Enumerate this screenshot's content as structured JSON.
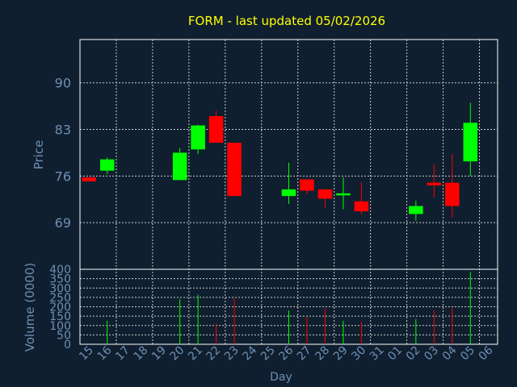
{
  "title": "FORM - last updated 05/02/2026",
  "colors": {
    "background": "#0f1f2f",
    "title": "#ffff00",
    "axis_text": "#6f8fb5",
    "axis_line": "#ffffff",
    "grid": "#cccccc",
    "up": "#00ff00",
    "down": "#ff0000"
  },
  "chart_data": {
    "type": "candlestick",
    "title": "FORM - last updated 05/02/2026",
    "xlabel": "Day",
    "price_panel": {
      "ylabel": "Price",
      "ylim": [
        62,
        96.5
      ],
      "yticks": [
        69,
        76,
        83,
        90
      ]
    },
    "volume_panel": {
      "ylabel": "Volume (0000)",
      "ylim": [
        0,
        400
      ],
      "yticks": [
        0,
        50,
        100,
        150,
        200,
        250,
        300,
        350,
        400
      ]
    },
    "x_tick_labels": [
      "15",
      "16",
      "17",
      "18",
      "19",
      "20",
      "21",
      "22",
      "23",
      "24",
      "25",
      "26",
      "27",
      "28",
      "29",
      "30",
      "31",
      "01",
      "02",
      "03",
      "04",
      "05",
      "06"
    ],
    "candles": [
      {
        "day": "15",
        "open": 75.8,
        "close": 75.2,
        "high": 75.8,
        "low": 75.2,
        "volume": 0
      },
      {
        "day": "16",
        "open": 76.8,
        "close": 78.5,
        "high": 78.8,
        "low": 76.3,
        "volume": 125
      },
      {
        "day": "20",
        "open": 75.4,
        "close": 79.5,
        "high": 80.2,
        "low": 75.4,
        "volume": 240
      },
      {
        "day": "21",
        "open": 80.0,
        "close": 83.6,
        "high": 83.7,
        "low": 79.3,
        "volume": 265
      },
      {
        "day": "22",
        "open": 85.0,
        "close": 81.0,
        "high": 85.8,
        "low": 81.0,
        "volume": 110
      },
      {
        "day": "23",
        "open": 81.0,
        "close": 73.0,
        "high": 81.0,
        "low": 73.0,
        "volume": 245
      },
      {
        "day": "26",
        "open": 73.0,
        "close": 74.0,
        "high": 78.0,
        "low": 71.8,
        "volume": 180
      },
      {
        "day": "27",
        "open": 75.5,
        "close": 73.8,
        "high": 75.5,
        "low": 73.3,
        "volume": 145
      },
      {
        "day": "28",
        "open": 74.0,
        "close": 72.6,
        "high": 74.0,
        "low": 71.3,
        "volume": 190
      },
      {
        "day": "29",
        "open": 73.1,
        "close": 73.4,
        "high": 75.8,
        "low": 71.0,
        "volume": 125
      },
      {
        "day": "30",
        "open": 72.2,
        "close": 70.7,
        "high": 75.1,
        "low": 70.3,
        "volume": 120
      },
      {
        "day": "02",
        "open": 70.3,
        "close": 71.5,
        "high": 72.3,
        "low": 69.3,
        "volume": 135
      },
      {
        "day": "03",
        "open": 75.0,
        "close": 74.6,
        "high": 77.8,
        "low": 72.8,
        "volume": 180
      },
      {
        "day": "04",
        "open": 75.0,
        "close": 71.5,
        "high": 79.3,
        "low": 69.8,
        "volume": 195
      },
      {
        "day": "05",
        "open": 78.2,
        "close": 84.0,
        "high": 87.0,
        "low": 76.0,
        "volume": 385
      }
    ]
  }
}
